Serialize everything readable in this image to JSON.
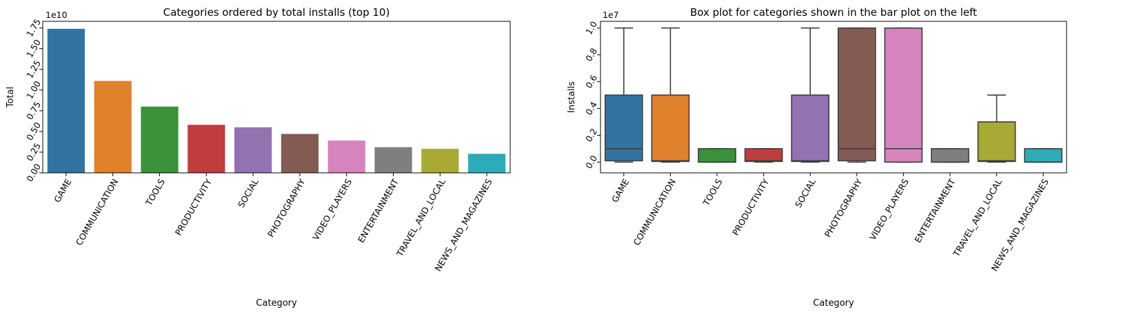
{
  "chart_data": [
    {
      "type": "bar",
      "title": "Categories ordered by total installs (top 10)",
      "xlabel": "Category",
      "ylabel": "Total",
      "offset_text": "1e10",
      "ylim": [
        0,
        1.83
      ],
      "yticks": [
        0.0,
        0.25,
        0.5,
        0.75,
        1.0,
        1.25,
        1.5,
        1.75
      ],
      "ytick_labels": [
        "0.00",
        "0.25",
        "0.50",
        "0.75",
        "1.00",
        "1.25",
        "1.50",
        "1.75"
      ],
      "categories": [
        "GAME",
        "COMMUNICATION",
        "TOOLS",
        "PRODUCTIVITY",
        "SOCIAL",
        "PHOTOGRAPHY",
        "VIDEO_PLAYERS",
        "ENTERTAINMENT",
        "TRAVEL_AND_LOCAL",
        "NEWS_AND_MAGAZINES"
      ],
      "values": [
        1.74,
        1.11,
        0.8,
        0.58,
        0.55,
        0.47,
        0.39,
        0.31,
        0.29,
        0.23
      ],
      "colors": [
        "#3274a1",
        "#e1812c",
        "#3a923a",
        "#c03d3e",
        "#9372b2",
        "#845b53",
        "#d684bd",
        "#7f7f7f",
        "#a9aa35",
        "#2eabb8"
      ],
      "grid": false,
      "legend": "none"
    },
    {
      "type": "box",
      "title": "Box plot for categories shown in the bar plot on the left",
      "xlabel": "Category",
      "ylabel": "Installs",
      "offset_text": "1e7",
      "ylim": [
        -0.08,
        1.05
      ],
      "yticks": [
        0.0,
        0.2,
        0.4,
        0.6,
        0.8,
        1.0
      ],
      "ytick_labels": [
        "0.0",
        "0.2",
        "0.4",
        "0.6",
        "0.8",
        "1.0"
      ],
      "categories": [
        "GAME",
        "COMMUNICATION",
        "TOOLS",
        "PRODUCTIVITY",
        "SOCIAL",
        "PHOTOGRAPHY",
        "VIDEO_PLAYERS",
        "ENTERTAINMENT",
        "TRAVEL_AND_LOCAL",
        "NEWS_AND_MAGAZINES"
      ],
      "boxes": [
        {
          "whislo": 0.0,
          "q1": 0.01,
          "med": 0.1,
          "q3": 0.5,
          "whishi": 1.0
        },
        {
          "whislo": 0.0,
          "q1": 0.005,
          "med": 0.01,
          "q3": 0.5,
          "whishi": 1.0
        },
        {
          "whislo": 0.0,
          "q1": 0.0,
          "med": 0.0,
          "q3": 0.1,
          "whishi": 0.1
        },
        {
          "whislo": 0.0,
          "q1": 0.005,
          "med": 0.01,
          "q3": 0.1,
          "whishi": 0.1
        },
        {
          "whislo": 0.0,
          "q1": 0.005,
          "med": 0.01,
          "q3": 0.5,
          "whishi": 1.0
        },
        {
          "whislo": 0.0,
          "q1": 0.01,
          "med": 0.1,
          "q3": 1.0,
          "whishi": 1.0
        },
        {
          "whislo": 0.0,
          "q1": 0.0,
          "med": 0.1,
          "q3": 1.0,
          "whishi": 1.0
        },
        {
          "whislo": 0.0,
          "q1": 0.0,
          "med": 0.0,
          "q3": 0.1,
          "whishi": 0.1
        },
        {
          "whislo": 0.0,
          "q1": 0.005,
          "med": 0.01,
          "q3": 0.3,
          "whishi": 0.5
        },
        {
          "whislo": 0.0,
          "q1": 0.0,
          "med": 0.0,
          "q3": 0.1,
          "whishi": 0.1
        }
      ],
      "colors": [
        "#3274a1",
        "#e1812c",
        "#3a923a",
        "#c03d3e",
        "#9372b2",
        "#845b53",
        "#d684bd",
        "#7f7f7f",
        "#a9aa35",
        "#2eabb8"
      ],
      "grid": false,
      "legend": "none"
    }
  ]
}
